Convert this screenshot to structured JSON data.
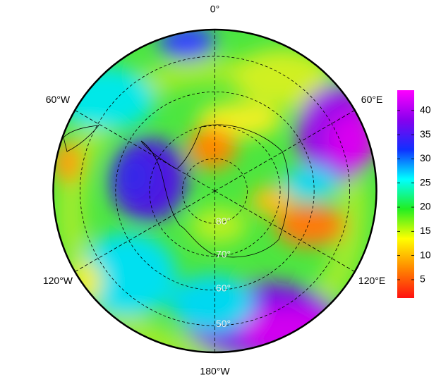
{
  "map": {
    "meridians": [
      {
        "value": 0,
        "label": "0°"
      },
      {
        "value": 60,
        "label": "60°E"
      },
      {
        "value": 120,
        "label": "120°E"
      },
      {
        "value": 180,
        "label": "180°W"
      },
      {
        "value": -120,
        "label": "120°W"
      },
      {
        "value": -60,
        "label": "60°W"
      }
    ],
    "parallels": [
      {
        "value": 80,
        "label": "80°"
      },
      {
        "value": 70,
        "label": "70°"
      },
      {
        "value": 60,
        "label": "60°"
      },
      {
        "value": 50,
        "label": "50°"
      }
    ]
  },
  "colorbar": {
    "lim": [
      1.2,
      44.2
    ],
    "ticks": [
      5,
      10,
      15,
      20,
      25,
      30,
      35,
      40
    ],
    "colors": [
      "#ff1010",
      "#ff8800",
      "#ffff00",
      "#22ee22",
      "#00ffff",
      "#1030ff",
      "#8800ee",
      "#ff00ff"
    ]
  }
}
